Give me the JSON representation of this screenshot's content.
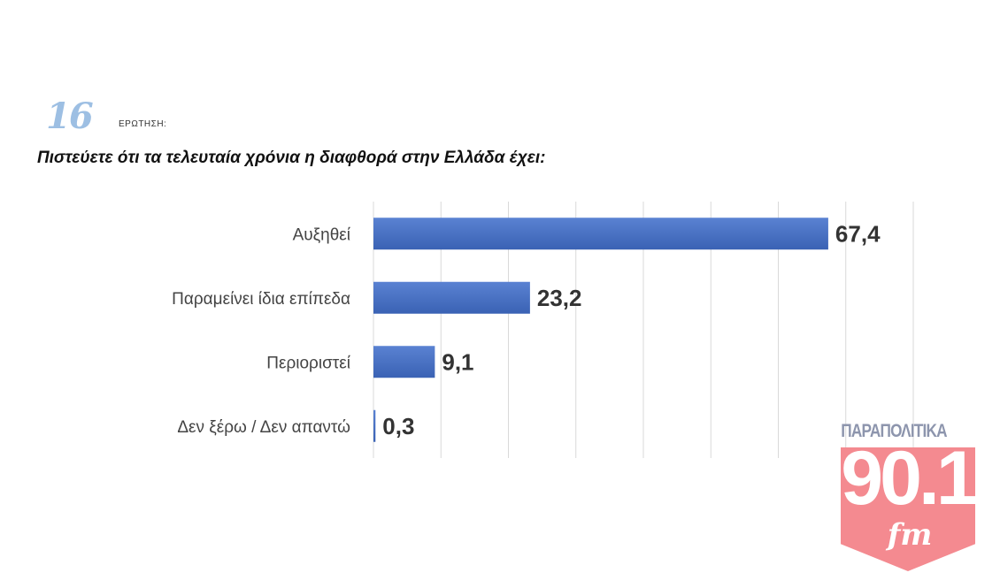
{
  "header": {
    "number": "16",
    "label": "ΕΡΩΤΗΣΗ:",
    "question": "Πιστεύετε ότι τα τελευταία χρόνια η διαφθορά στην Ελλάδα έχει:"
  },
  "chart_data": {
    "type": "bar",
    "orientation": "horizontal",
    "categories": [
      "Αυξηθεί",
      "Παραμείνει ίδια επίπεδα",
      "Περιοριστεί",
      "Δεν ξέρω / Δεν απαντώ"
    ],
    "values": [
      67.4,
      23.2,
      9.1,
      0.3
    ],
    "value_labels": [
      "67,4",
      "23,2",
      "9,1",
      "0,3"
    ],
    "xlim": [
      0,
      80
    ],
    "grid": true,
    "bar_color": "#4a72c4"
  },
  "logo": {
    "top_text": "ΠΑΡΑΠΟΛΙΤΙΚΑ",
    "number": "90.1",
    "suffix": "fm",
    "color": "#f48a90"
  }
}
